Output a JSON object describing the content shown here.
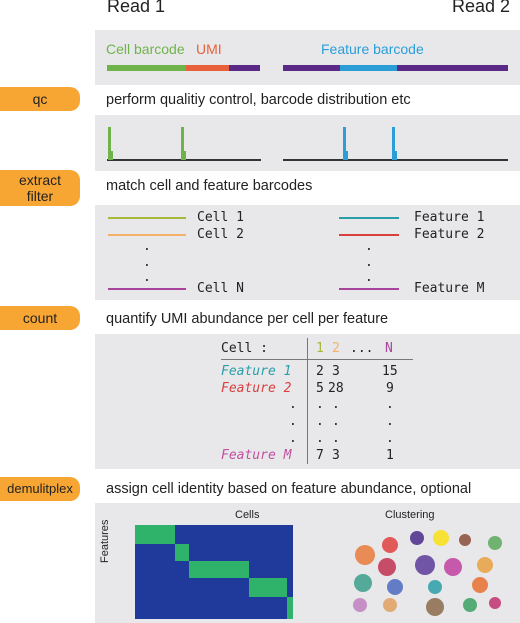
{
  "header": {
    "read1": "Read 1",
    "read2": "Read 2"
  },
  "read_structure": {
    "cell_barcode": "Cell barcode",
    "umi": "UMI",
    "feature_barcode": "Feature barcode",
    "colors": {
      "cell": "#6fb44a",
      "umi": "#e8613a",
      "purple": "#5b2a86",
      "feature": "#2b9ed8"
    }
  },
  "steps": {
    "qc": {
      "label": "qc",
      "description": "perform qualitiy control, barcode distribution etc"
    },
    "extract": {
      "label": "extract\nfilter",
      "description": "match cell and feature barcodes"
    },
    "count": {
      "label": "count",
      "description": "quantify UMI abundance per cell per feature"
    },
    "demux": {
      "label": "demulitplex",
      "description": "assign cell identity based on feature abundance, optional"
    }
  },
  "matching": {
    "cells": [
      {
        "label": "Cell 1",
        "color": "#a8b83a"
      },
      {
        "label": "Cell 2",
        "color": "#f5b16a"
      },
      {
        "label": "Cell N",
        "color": "#a8449e"
      }
    ],
    "features": [
      {
        "label": "Feature 1",
        "color": "#2a9ea8"
      },
      {
        "label": "Feature 2",
        "color": "#d94040"
      },
      {
        "label": "Feature M",
        "color": "#a8449e"
      }
    ],
    "dot": "."
  },
  "count_table": {
    "header_label": "Cell :",
    "col1": "1",
    "col2": "2",
    "ellipsis": "...",
    "colN": "N",
    "rows": [
      {
        "label": "Feature 1",
        "color": "#2a9ea8",
        "v1": "2",
        "v2": "3",
        "vN": "15"
      },
      {
        "label": "Feature 2",
        "color": "#d94040",
        "v1": "5",
        "v2": "28",
        "vN": "9"
      },
      {
        "label": "Feature M",
        "color": "#c050a0",
        "v1": "7",
        "v2": "3",
        "vN": "1"
      }
    ]
  },
  "heatmap": {
    "title": "Cells",
    "ylabel": "Features",
    "bg": "#1f3a9a",
    "fg": "#2fb36a"
  },
  "clustering": {
    "title": "Clustering"
  }
}
